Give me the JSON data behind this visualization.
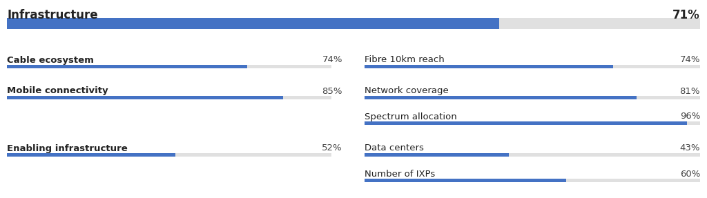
{
  "title": "Infrastructure",
  "title_value": "71%",
  "title_score": 71,
  "bg_color": "#ffffff",
  "bar_bg_color": "#e0e0e0",
  "bar_fg_color": "#4472C4",
  "left_metrics": [
    {
      "label": "Cable ecosystem",
      "value": 74
    },
    {
      "label": "Mobile connectivity",
      "value": 85
    },
    {
      "label": "Enabling infrastructure",
      "value": 52
    }
  ],
  "right_metrics": [
    {
      "label": "Fibre 10km reach",
      "value": 74
    },
    {
      "label": "Network coverage",
      "value": 81
    },
    {
      "label": "Spectrum allocation",
      "value": 96
    },
    {
      "label": "Data centers",
      "value": 43
    },
    {
      "label": "Number of IXPs",
      "value": 60
    }
  ],
  "fig_w": 10.24,
  "fig_h": 2.87,
  "dpi": 100
}
